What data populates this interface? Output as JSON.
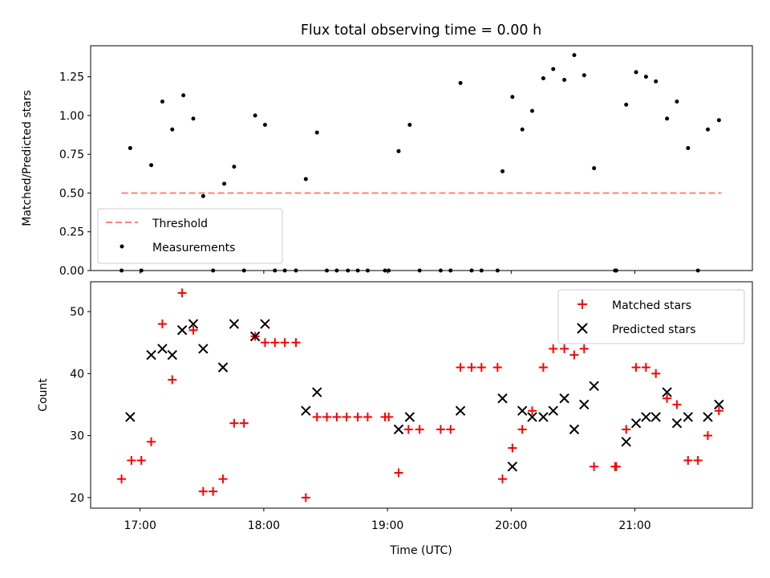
{
  "chart_data": [
    {
      "type": "scatter",
      "title": "Flux total observing time = 0.00 h",
      "ylabel": "Matched/Predicted stars",
      "xlabel": "",
      "xlim": [
        16.6,
        21.95
      ],
      "ylim": [
        0,
        1.45
      ],
      "yticks": [
        0,
        0.25,
        0.5,
        0.75,
        1.0,
        1.25
      ],
      "ytick_labels": [
        "0.00",
        "0.25",
        "0.50",
        "0.75",
        "1.00",
        "1.25"
      ],
      "threshold": {
        "name": "Threshold",
        "value": 0.5,
        "x_range": [
          16.85,
          21.7
        ],
        "color": "#ff8080"
      },
      "legend": {
        "position": "lower-left",
        "entries": [
          "Threshold",
          "Measurements"
        ]
      },
      "series": [
        {
          "name": "Measurements",
          "color": "#000000",
          "x": [
            16.85,
            16.92,
            17.01,
            17.09,
            17.18,
            17.26,
            17.35,
            17.43,
            17.51,
            17.59,
            17.68,
            17.76,
            17.84,
            17.93,
            18.01,
            18.09,
            18.17,
            18.26,
            18.34,
            18.43,
            18.51,
            18.59,
            18.68,
            18.76,
            18.84,
            18.98,
            19.01,
            19.09,
            19.18,
            19.26,
            19.43,
            19.51,
            19.59,
            19.68,
            19.76,
            19.89,
            19.93,
            20.01,
            20.09,
            20.17,
            20.26,
            20.34,
            20.43,
            20.51,
            20.59,
            20.67,
            20.84,
            20.85,
            20.93,
            21.01,
            21.09,
            21.17,
            21.26,
            21.34,
            21.43,
            21.51,
            21.59,
            21.68
          ],
          "y": [
            0,
            0.79,
            0,
            0.68,
            1.09,
            0.91,
            1.13,
            0.98,
            0.48,
            0,
            0.56,
            0.67,
            0,
            1.0,
            0.94,
            0,
            0,
            0,
            0.59,
            0.89,
            0,
            0,
            0,
            0,
            0,
            0,
            0,
            0.77,
            0.94,
            0,
            0,
            0,
            1.21,
            0,
            0,
            0,
            0.64,
            1.12,
            0.91,
            1.03,
            1.24,
            1.3,
            1.23,
            1.39,
            1.26,
            0.66,
            0,
            0,
            1.07,
            1.28,
            1.25,
            1.22,
            0.98,
            1.09,
            0.79,
            0,
            0.91,
            0.97
          ]
        }
      ]
    },
    {
      "type": "scatter",
      "title": "",
      "xlabel": "Time (UTC)",
      "ylabel": "Count",
      "xlim": [
        16.6,
        21.95
      ],
      "ylim": [
        18.3,
        54.8
      ],
      "xticks": [
        17,
        18,
        19,
        20,
        21
      ],
      "xtick_labels": [
        "17:00",
        "18:00",
        "19:00",
        "20:00",
        "21:00"
      ],
      "yticks": [
        20,
        30,
        40,
        50
      ],
      "ytick_labels": [
        "20",
        "30",
        "40",
        "50"
      ],
      "legend": {
        "position": "top-right",
        "entries": [
          "Matched stars",
          "Predicted stars"
        ]
      },
      "series": [
        {
          "name": "Matched stars",
          "marker": "plus",
          "color": "#ff0000",
          "x": [
            16.85,
            16.93,
            17.01,
            17.09,
            17.18,
            17.26,
            17.34,
            17.43,
            17.51,
            17.59,
            17.67,
            17.76,
            17.84,
            17.93,
            18.01,
            18.09,
            18.17,
            18.26,
            18.34,
            18.43,
            18.51,
            18.59,
            18.67,
            18.76,
            18.84,
            18.98,
            19.01,
            19.09,
            19.17,
            19.26,
            19.43,
            19.51,
            19.59,
            19.68,
            19.76,
            19.89,
            19.93,
            20.01,
            20.09,
            20.17,
            20.26,
            20.34,
            20.43,
            20.51,
            20.59,
            20.67,
            20.84,
            20.85,
            20.93,
            21.01,
            21.09,
            21.17,
            21.26,
            21.34,
            21.43,
            21.51,
            21.59,
            21.68
          ],
          "y": [
            23,
            26,
            26,
            29,
            48,
            39,
            53,
            47,
            21,
            21,
            23,
            32,
            32,
            46,
            45,
            45,
            45,
            45,
            20,
            33,
            33,
            33,
            33,
            33,
            33,
            33,
            33,
            24,
            31,
            31,
            31,
            31,
            41,
            41,
            41,
            41,
            23,
            28,
            31,
            34,
            41,
            44,
            44,
            43,
            44,
            25,
            25,
            25,
            31,
            41,
            41,
            40,
            36,
            35,
            26,
            26,
            30,
            34
          ]
        },
        {
          "name": "Predicted stars",
          "marker": "x",
          "color": "#000000",
          "x": [
            16.92,
            17.09,
            17.18,
            17.26,
            17.34,
            17.43,
            17.51,
            17.67,
            17.76,
            17.93,
            18.01,
            18.34,
            18.43,
            19.09,
            19.18,
            19.59,
            19.93,
            20.01,
            20.09,
            20.17,
            20.26,
            20.34,
            20.43,
            20.51,
            20.59,
            20.67,
            20.93,
            21.01,
            21.09,
            21.17,
            21.26,
            21.34,
            21.43,
            21.59,
            21.68
          ],
          "y": [
            33,
            43,
            44,
            43,
            47,
            48,
            44,
            41,
            48,
            46,
            48,
            34,
            37,
            31,
            33,
            34,
            36,
            25,
            34,
            33,
            33,
            34,
            36,
            31,
            35,
            38,
            29,
            32,
            33,
            33,
            37,
            32,
            33,
            33,
            35
          ]
        }
      ]
    }
  ]
}
